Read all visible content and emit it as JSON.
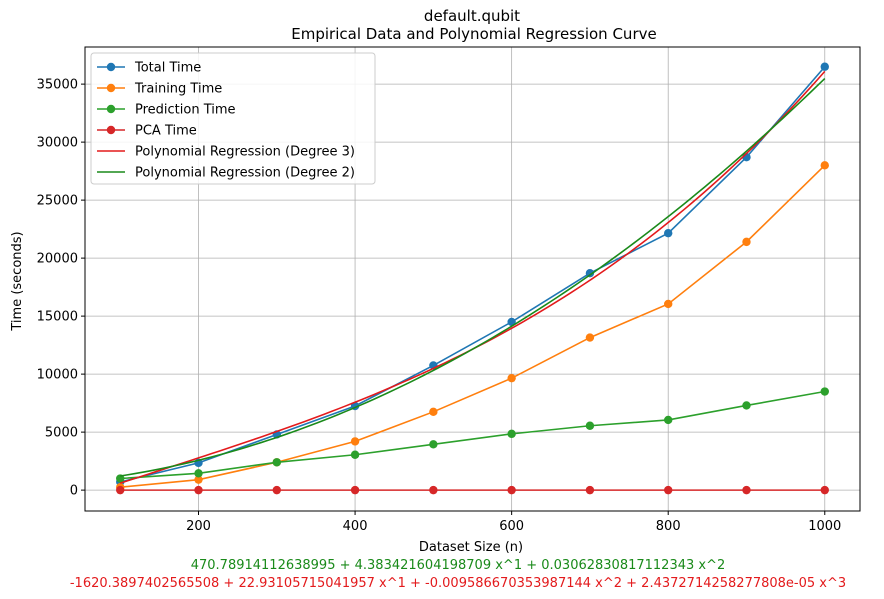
{
  "chart_data": {
    "type": "line",
    "title": "default.qubit",
    "subtitle": "Empirical Data and Polynomial Regression Curve",
    "xlabel": "Dataset Size (n)",
    "ylabel": "Time (seconds)",
    "xlim": [
      55,
      1045
    ],
    "ylim": [
      -1800,
      38200
    ],
    "xticks": [
      200,
      400,
      600,
      800,
      1000
    ],
    "yticks": [
      0,
      5000,
      10000,
      15000,
      20000,
      25000,
      30000,
      35000
    ],
    "grid": true,
    "legend_position": "top-left",
    "x": [
      100,
      200,
      300,
      400,
      500,
      600,
      700,
      800,
      900,
      1000
    ],
    "series": [
      {
        "name": "Total Time",
        "color": "#1f77b4",
        "marker": true,
        "values": [
          700,
          2350,
          4800,
          7250,
          10750,
          14500,
          18700,
          22150,
          28700,
          36500
        ]
      },
      {
        "name": "Training Time",
        "color": "#ff7f0e",
        "marker": true,
        "values": [
          250,
          900,
          2400,
          4200,
          6750,
          9650,
          13150,
          16050,
          21400,
          28000
        ]
      },
      {
        "name": "Prediction Time",
        "color": "#2ca02c",
        "marker": true,
        "values": [
          1000,
          1450,
          2400,
          3050,
          3950,
          4850,
          5550,
          6050,
          7300,
          8500
        ]
      },
      {
        "name": "PCA Time",
        "color": "#d62728",
        "marker": true,
        "values": [
          0,
          0,
          0,
          0,
          0,
          0,
          0,
          0,
          0,
          0
        ]
      }
    ],
    "fits": [
      {
        "name": "Polynomial Regression (Degree 3)",
        "color": "#e31a1c",
        "degree": 3,
        "coefficients": [
          -1620.3897402565508,
          22.93105715041957,
          -0.009586670353987144,
          2.4372714258277808e-05
        ],
        "equation": "-1620.3897402565508 + 22.93105715041957 x^1 + -0.009586670353987144 x^2 + 2.4372714258277808e-05 x^3"
      },
      {
        "name": "Polynomial Regression (Degree 2)",
        "color": "#1a8a1a",
        "degree": 2,
        "coefficients": [
          470.78914112638995,
          4.383421604198709,
          0.03062830817112343
        ],
        "equation": "470.78914112638995 + 4.383421604198709 x^1 + 0.03062830817112343 x^2"
      }
    ]
  }
}
